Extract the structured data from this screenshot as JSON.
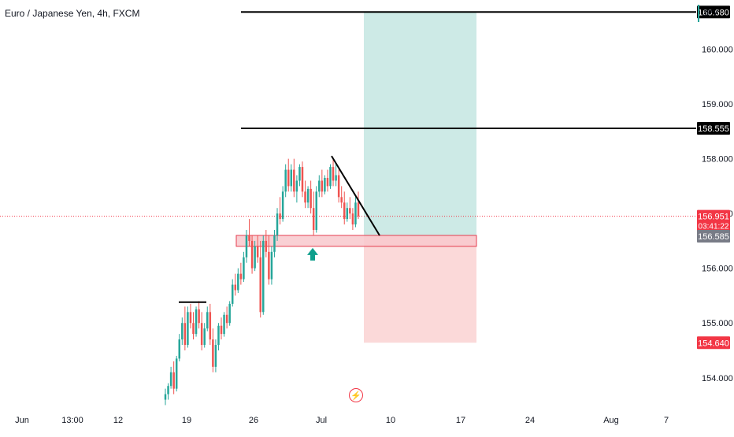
{
  "header": {
    "symbol_title": "Euro / Japanese Yen, 4h, FXCM",
    "currency": "JPY"
  },
  "colors": {
    "up": "#26a69a",
    "down": "#ef5350",
    "profit_zone": "#cdeae6",
    "loss_zone": "#fbd9d9",
    "support_zone": "#f8c8cc",
    "support_border": "#e53e4f",
    "price_line": "#f23645"
  },
  "icons": {
    "flash": "lightning-bolt-icon",
    "arrow": "up-arrow-icon"
  },
  "flash_glyph": "⚡",
  "chart_data": {
    "type": "candlestick",
    "ylim": [
      153.45,
      160.9
    ],
    "yticks": [
      "154.000",
      "155.000",
      "156.000",
      "157.000",
      "158.000",
      "159.000",
      "160.000"
    ],
    "xticks": [
      "Jun",
      "13:00",
      "12",
      "19",
      "26",
      "Jul",
      "10",
      "17",
      "24",
      "Aug",
      "7"
    ],
    "price_labels": [
      {
        "value": 160.68,
        "text": "160.680",
        "style": "black"
      },
      {
        "value": 158.555,
        "text": "158.555",
        "style": "black"
      },
      {
        "value": 156.951,
        "text": "156.951",
        "sub": "03:41:22",
        "style": "red"
      },
      {
        "value": 156.585,
        "text": "156.585",
        "style": "grey"
      },
      {
        "value": 154.64,
        "text": "154.640",
        "style": "red"
      }
    ],
    "horizontal_lines": [
      {
        "value": 160.68,
        "x_start": "Jun 19",
        "x_end": "right-edge"
      },
      {
        "value": 158.555,
        "x_start": "Jun 19",
        "x_end": "right-edge"
      },
      {
        "value": 155.38,
        "x_start": "Jun 17",
        "x_end": "Jun 21"
      }
    ],
    "trend_line": {
      "from": {
        "x": "Jul 2",
        "value": 158.05
      },
      "to": {
        "x": "Jul 7",
        "value": 156.6
      }
    },
    "long_position": {
      "entry": 156.585,
      "target": 160.68,
      "stop": 154.64,
      "from": "Jul 6",
      "to": "Jul 18"
    },
    "support_zone": {
      "low": 156.4,
      "high": 156.6,
      "from": "Jun 23",
      "to": "Jul 18"
    },
    "last_price": 156.951,
    "candles": [
      [
        153.6,
        153.8,
        153.5,
        153.7
      ],
      [
        153.7,
        153.9,
        153.6,
        153.85
      ],
      [
        153.85,
        154.2,
        153.8,
        154.1
      ],
      [
        154.1,
        154.3,
        153.7,
        153.8
      ],
      [
        153.8,
        154.4,
        153.75,
        154.35
      ],
      [
        154.35,
        154.8,
        154.3,
        154.7
      ],
      [
        154.7,
        155.1,
        154.6,
        155.0
      ],
      [
        155.0,
        155.3,
        154.5,
        154.6
      ],
      [
        154.6,
        155.3,
        154.55,
        155.2
      ],
      [
        155.2,
        155.35,
        154.9,
        155.0
      ],
      [
        155.0,
        155.2,
        154.7,
        154.8
      ],
      [
        154.8,
        155.3,
        154.75,
        155.25
      ],
      [
        155.25,
        155.4,
        154.9,
        155.0
      ],
      [
        155.0,
        155.2,
        154.5,
        154.6
      ],
      [
        154.6,
        155.0,
        154.55,
        154.9
      ],
      [
        154.9,
        155.3,
        154.85,
        155.2
      ],
      [
        155.2,
        155.35,
        154.6,
        154.7
      ],
      [
        154.7,
        154.9,
        154.1,
        154.2
      ],
      [
        154.2,
        154.7,
        154.1,
        154.6
      ],
      [
        154.6,
        155.0,
        154.5,
        154.95
      ],
      [
        154.95,
        155.1,
        154.7,
        154.8
      ],
      [
        154.8,
        155.2,
        154.75,
        155.15
      ],
      [
        155.15,
        155.3,
        154.9,
        155.0
      ],
      [
        155.0,
        155.4,
        154.95,
        155.35
      ],
      [
        155.35,
        155.8,
        155.3,
        155.7
      ],
      [
        155.7,
        155.9,
        155.5,
        155.6
      ],
      [
        155.6,
        156.0,
        155.55,
        155.9
      ],
      [
        155.9,
        156.1,
        155.7,
        155.8
      ],
      [
        155.8,
        156.3,
        155.75,
        156.2
      ],
      [
        156.2,
        156.7,
        156.1,
        156.6
      ],
      [
        156.6,
        156.9,
        156.4,
        156.5
      ],
      [
        156.5,
        156.6,
        155.9,
        156.0
      ],
      [
        156.0,
        156.5,
        155.95,
        156.4
      ],
      [
        156.4,
        156.6,
        156.1,
        156.2
      ],
      [
        156.2,
        156.5,
        155.1,
        155.2
      ],
      [
        155.2,
        156.6,
        155.15,
        156.5
      ],
      [
        156.5,
        156.7,
        156.2,
        156.3
      ],
      [
        156.3,
        156.6,
        155.7,
        155.8
      ],
      [
        155.8,
        156.4,
        155.7,
        156.3
      ],
      [
        156.3,
        156.7,
        156.2,
        156.6
      ],
      [
        156.6,
        157.1,
        156.5,
        157.0
      ],
      [
        157.0,
        157.3,
        156.8,
        156.9
      ],
      [
        156.9,
        157.5,
        156.85,
        157.4
      ],
      [
        157.4,
        157.9,
        157.3,
        157.8
      ],
      [
        157.8,
        158.0,
        157.4,
        157.5
      ],
      [
        157.5,
        157.9,
        157.4,
        157.8
      ],
      [
        157.8,
        158.0,
        157.3,
        157.4
      ],
      [
        157.4,
        157.7,
        157.2,
        157.6
      ],
      [
        157.6,
        157.9,
        157.5,
        157.85
      ],
      [
        157.85,
        157.95,
        157.3,
        157.4
      ],
      [
        157.4,
        157.6,
        157.1,
        157.2
      ],
      [
        157.2,
        157.5,
        157.1,
        157.45
      ],
      [
        157.45,
        157.6,
        157.0,
        157.1
      ],
      [
        157.1,
        157.4,
        156.6,
        156.7
      ],
      [
        156.7,
        157.5,
        156.65,
        157.4
      ],
      [
        157.4,
        157.7,
        157.3,
        157.6
      ],
      [
        157.6,
        157.8,
        157.3,
        157.4
      ],
      [
        157.4,
        157.7,
        157.35,
        157.65
      ],
      [
        157.65,
        157.8,
        157.4,
        157.5
      ],
      [
        157.5,
        157.9,
        157.45,
        157.85
      ],
      [
        157.85,
        158.0,
        157.5,
        157.6
      ],
      [
        157.6,
        157.9,
        157.5,
        157.7
      ],
      [
        157.7,
        157.8,
        157.2,
        157.3
      ],
      [
        157.3,
        157.5,
        157.1,
        157.2
      ],
      [
        157.2,
        157.4,
        156.8,
        156.9
      ],
      [
        156.9,
        157.2,
        156.85,
        157.1
      ],
      [
        157.1,
        157.3,
        156.9,
        157.0
      ],
      [
        157.0,
        157.1,
        156.7,
        156.8
      ],
      [
        156.8,
        157.3,
        156.75,
        157.2
      ],
      [
        157.2,
        157.4,
        156.9,
        156.95
      ]
    ]
  }
}
